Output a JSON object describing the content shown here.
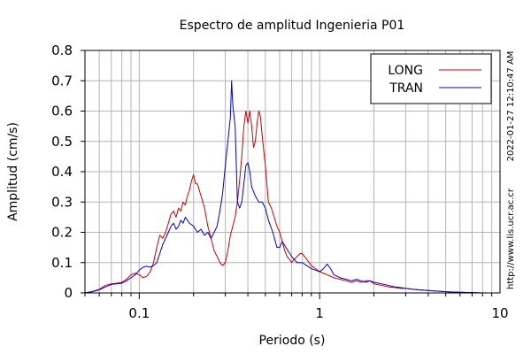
{
  "chart_data": {
    "type": "line",
    "title": "Espectro de amplitud Ingenieria P01",
    "xlabel": "Periodo (s)",
    "ylabel": "Amplitud (cm/s)",
    "xscale": "log",
    "xlim": [
      0.05,
      10
    ],
    "ylim": [
      0,
      0.8
    ],
    "xticks": [
      {
        "value": 0.1,
        "label": "0.1"
      },
      {
        "value": 1,
        "label": "1"
      },
      {
        "value": 10,
        "label": "10"
      }
    ],
    "yticks": [
      {
        "value": 0,
        "label": "0"
      },
      {
        "value": 0.1,
        "label": "0.1"
      },
      {
        "value": 0.2,
        "label": "0.2"
      },
      {
        "value": 0.3,
        "label": "0.3"
      },
      {
        "value": 0.4,
        "label": "0.4"
      },
      {
        "value": 0.5,
        "label": "0.5"
      },
      {
        "value": 0.6,
        "label": "0.6"
      },
      {
        "value": 0.7,
        "label": "0.7"
      },
      {
        "value": 0.8,
        "label": "0.8"
      }
    ],
    "grid": true,
    "legend_position": "top-right",
    "series": [
      {
        "name": "LONG",
        "color": "#cc0000",
        "points": [
          [
            0.05,
            0.0
          ],
          [
            0.055,
            0.005
          ],
          [
            0.06,
            0.012
          ],
          [
            0.065,
            0.025
          ],
          [
            0.07,
            0.03
          ],
          [
            0.075,
            0.032
          ],
          [
            0.08,
            0.035
          ],
          [
            0.085,
            0.045
          ],
          [
            0.09,
            0.06
          ],
          [
            0.095,
            0.065
          ],
          [
            0.1,
            0.06
          ],
          [
            0.105,
            0.05
          ],
          [
            0.11,
            0.055
          ],
          [
            0.115,
            0.07
          ],
          [
            0.12,
            0.1
          ],
          [
            0.125,
            0.15
          ],
          [
            0.13,
            0.19
          ],
          [
            0.135,
            0.18
          ],
          [
            0.14,
            0.2
          ],
          [
            0.145,
            0.23
          ],
          [
            0.15,
            0.26
          ],
          [
            0.155,
            0.27
          ],
          [
            0.16,
            0.25
          ],
          [
            0.165,
            0.28
          ],
          [
            0.17,
            0.27
          ],
          [
            0.175,
            0.3
          ],
          [
            0.18,
            0.29
          ],
          [
            0.185,
            0.32
          ],
          [
            0.19,
            0.34
          ],
          [
            0.195,
            0.37
          ],
          [
            0.2,
            0.39
          ],
          [
            0.205,
            0.36
          ],
          [
            0.21,
            0.36
          ],
          [
            0.22,
            0.32
          ],
          [
            0.23,
            0.28
          ],
          [
            0.24,
            0.22
          ],
          [
            0.25,
            0.18
          ],
          [
            0.26,
            0.14
          ],
          [
            0.27,
            0.12
          ],
          [
            0.28,
            0.1
          ],
          [
            0.29,
            0.09
          ],
          [
            0.3,
            0.1
          ],
          [
            0.31,
            0.14
          ],
          [
            0.32,
            0.19
          ],
          [
            0.33,
            0.22
          ],
          [
            0.34,
            0.25
          ],
          [
            0.35,
            0.3
          ],
          [
            0.36,
            0.37
          ],
          [
            0.37,
            0.45
          ],
          [
            0.38,
            0.55
          ],
          [
            0.39,
            0.6
          ],
          [
            0.4,
            0.56
          ],
          [
            0.41,
            0.6
          ],
          [
            0.42,
            0.55
          ],
          [
            0.43,
            0.48
          ],
          [
            0.44,
            0.5
          ],
          [
            0.45,
            0.56
          ],
          [
            0.46,
            0.6
          ],
          [
            0.47,
            0.58
          ],
          [
            0.48,
            0.52
          ],
          [
            0.5,
            0.42
          ],
          [
            0.52,
            0.3
          ],
          [
            0.54,
            0.28
          ],
          [
            0.56,
            0.25
          ],
          [
            0.58,
            0.22
          ],
          [
            0.6,
            0.2
          ],
          [
            0.62,
            0.17
          ],
          [
            0.64,
            0.14
          ],
          [
            0.66,
            0.12
          ],
          [
            0.68,
            0.11
          ],
          [
            0.7,
            0.1
          ],
          [
            0.72,
            0.11
          ],
          [
            0.75,
            0.12
          ],
          [
            0.78,
            0.13
          ],
          [
            0.8,
            0.13
          ],
          [
            0.85,
            0.11
          ],
          [
            0.9,
            0.09
          ],
          [
            0.95,
            0.08
          ],
          [
            1.0,
            0.07
          ],
          [
            1.05,
            0.065
          ],
          [
            1.1,
            0.06
          ],
          [
            1.2,
            0.05
          ],
          [
            1.3,
            0.045
          ],
          [
            1.4,
            0.04
          ],
          [
            1.5,
            0.035
          ],
          [
            1.6,
            0.04
          ],
          [
            1.7,
            0.035
          ],
          [
            1.8,
            0.04
          ],
          [
            1.9,
            0.04
          ],
          [
            2.0,
            0.03
          ],
          [
            2.2,
            0.025
          ],
          [
            2.4,
            0.02
          ],
          [
            2.6,
            0.018
          ],
          [
            2.8,
            0.015
          ],
          [
            3.0,
            0.015
          ],
          [
            3.3,
            0.012
          ],
          [
            3.6,
            0.01
          ],
          [
            4.0,
            0.008
          ],
          [
            4.5,
            0.006
          ],
          [
            5.0,
            0.004
          ],
          [
            6.0,
            0.002
          ],
          [
            7.0,
            0.001
          ],
          [
            8.0,
            0.0
          ],
          [
            10.0,
            0.0
          ]
        ]
      },
      {
        "name": "TRAN",
        "color": "#0000cc",
        "points": [
          [
            0.05,
            0.0
          ],
          [
            0.055,
            0.004
          ],
          [
            0.06,
            0.01
          ],
          [
            0.065,
            0.02
          ],
          [
            0.07,
            0.028
          ],
          [
            0.075,
            0.03
          ],
          [
            0.08,
            0.032
          ],
          [
            0.085,
            0.04
          ],
          [
            0.09,
            0.05
          ],
          [
            0.095,
            0.06
          ],
          [
            0.1,
            0.075
          ],
          [
            0.105,
            0.085
          ],
          [
            0.11,
            0.088
          ],
          [
            0.115,
            0.085
          ],
          [
            0.12,
            0.09
          ],
          [
            0.125,
            0.1
          ],
          [
            0.13,
            0.13
          ],
          [
            0.135,
            0.16
          ],
          [
            0.14,
            0.18
          ],
          [
            0.145,
            0.2
          ],
          [
            0.15,
            0.22
          ],
          [
            0.155,
            0.23
          ],
          [
            0.16,
            0.21
          ],
          [
            0.165,
            0.22
          ],
          [
            0.17,
            0.24
          ],
          [
            0.175,
            0.23
          ],
          [
            0.18,
            0.25
          ],
          [
            0.185,
            0.24
          ],
          [
            0.19,
            0.23
          ],
          [
            0.2,
            0.22
          ],
          [
            0.21,
            0.2
          ],
          [
            0.22,
            0.21
          ],
          [
            0.23,
            0.19
          ],
          [
            0.24,
            0.2
          ],
          [
            0.25,
            0.18
          ],
          [
            0.26,
            0.2
          ],
          [
            0.27,
            0.22
          ],
          [
            0.28,
            0.27
          ],
          [
            0.29,
            0.33
          ],
          [
            0.3,
            0.42
          ],
          [
            0.31,
            0.5
          ],
          [
            0.32,
            0.58
          ],
          [
            0.325,
            0.7
          ],
          [
            0.33,
            0.62
          ],
          [
            0.34,
            0.55
          ],
          [
            0.35,
            0.3
          ],
          [
            0.36,
            0.28
          ],
          [
            0.37,
            0.3
          ],
          [
            0.38,
            0.36
          ],
          [
            0.39,
            0.42
          ],
          [
            0.4,
            0.43
          ],
          [
            0.41,
            0.4
          ],
          [
            0.42,
            0.35
          ],
          [
            0.44,
            0.32
          ],
          [
            0.46,
            0.3
          ],
          [
            0.48,
            0.3
          ],
          [
            0.5,
            0.28
          ],
          [
            0.52,
            0.24
          ],
          [
            0.55,
            0.2
          ],
          [
            0.58,
            0.15
          ],
          [
            0.6,
            0.15
          ],
          [
            0.62,
            0.17
          ],
          [
            0.65,
            0.15
          ],
          [
            0.7,
            0.12
          ],
          [
            0.75,
            0.1
          ],
          [
            0.8,
            0.1
          ],
          [
            0.85,
            0.09
          ],
          [
            0.9,
            0.08
          ],
          [
            0.95,
            0.075
          ],
          [
            1.0,
            0.07
          ],
          [
            1.05,
            0.08
          ],
          [
            1.1,
            0.095
          ],
          [
            1.15,
            0.08
          ],
          [
            1.2,
            0.06
          ],
          [
            1.3,
            0.05
          ],
          [
            1.4,
            0.045
          ],
          [
            1.5,
            0.04
          ],
          [
            1.6,
            0.045
          ],
          [
            1.7,
            0.04
          ],
          [
            1.8,
            0.035
          ],
          [
            1.9,
            0.04
          ],
          [
            2.0,
            0.035
          ],
          [
            2.2,
            0.03
          ],
          [
            2.4,
            0.025
          ],
          [
            2.6,
            0.02
          ],
          [
            2.8,
            0.018
          ],
          [
            3.0,
            0.015
          ],
          [
            3.3,
            0.012
          ],
          [
            3.6,
            0.01
          ],
          [
            4.0,
            0.008
          ],
          [
            4.5,
            0.006
          ],
          [
            5.0,
            0.004
          ],
          [
            6.0,
            0.002
          ],
          [
            7.0,
            0.001
          ],
          [
            8.0,
            0.0
          ],
          [
            10.0,
            0.0
          ]
        ]
      }
    ],
    "side_labels": {
      "timestamp": "2022-01-27 12:10:47 AM",
      "url": "http://www.lis.ucr.ac.cr"
    }
  }
}
